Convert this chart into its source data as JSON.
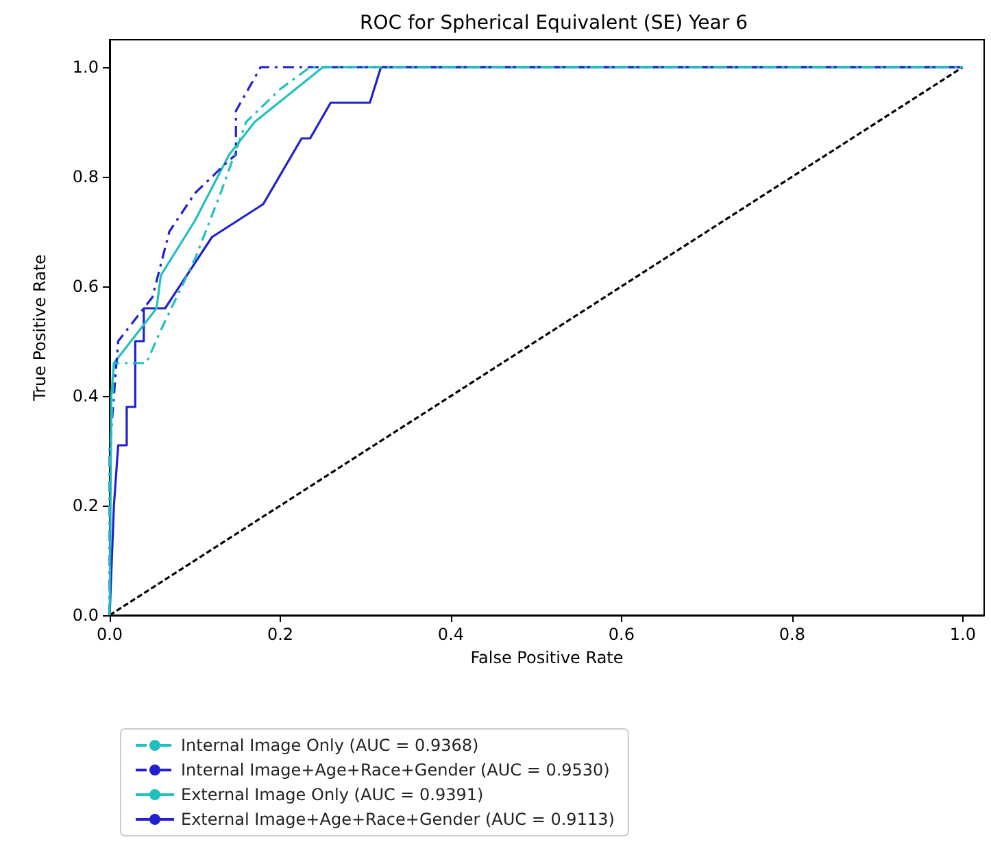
{
  "chart_data": {
    "type": "line",
    "title": "ROC for Spherical Equivalent (SE) Year 6",
    "xlabel": "False Positive Rate",
    "ylabel": "True Positive Rate",
    "xlim": [
      0,
      1.025
    ],
    "ylim": [
      0,
      1.05
    ],
    "xticks": [
      {
        "value": 0,
        "label": "0.0"
      },
      {
        "value": 0.2,
        "label": "0.2"
      },
      {
        "value": 0.4,
        "label": "0.4"
      },
      {
        "value": 0.6,
        "label": "0.6"
      },
      {
        "value": 0.8,
        "label": "0.8"
      },
      {
        "value": 1,
        "label": "1.0"
      }
    ],
    "yticks": [
      {
        "value": 0,
        "label": "0.0"
      },
      {
        "value": 0.2,
        "label": "0.2"
      },
      {
        "value": 0.4,
        "label": "0.4"
      },
      {
        "value": 0.6,
        "label": "0.6"
      },
      {
        "value": 0.8,
        "label": "0.8"
      },
      {
        "value": 1,
        "label": "1.0"
      }
    ],
    "grid": false,
    "legend": "bottom",
    "marker": "none",
    "series": [
      {
        "name": "Internal Image Only (AUC = 0.9368)",
        "color": "#20c0c0",
        "line_style": "dashdot",
        "x": [
          0,
          0,
          0.005,
          0.043,
          0.06,
          0.1,
          0.13,
          0.16,
          0.2,
          0.235,
          1
        ],
        "values": [
          0,
          0.27,
          0.46,
          0.46,
          0.52,
          0.65,
          0.77,
          0.9,
          0.96,
          1,
          1
        ]
      },
      {
        "name": "Internal Image+Age+Race+Gender (AUC = 0.9530)",
        "color": "#2020d0",
        "line_style": "dashdot",
        "x": [
          0,
          0,
          0.01,
          0.03,
          0.05,
          0.07,
          0.1,
          0.14,
          0.148,
          0.148,
          0.177,
          1
        ],
        "values": [
          0,
          0.3,
          0.5,
          0.54,
          0.58,
          0.7,
          0.77,
          0.83,
          0.84,
          0.92,
          1,
          1
        ]
      },
      {
        "name": "External Image Only (AUC = 0.9391)",
        "color": "#20c0c0",
        "line_style": "solid",
        "x": [
          0,
          0.002,
          0.005,
          0.055,
          0.06,
          0.1,
          0.14,
          0.17,
          0.25,
          1
        ],
        "values": [
          0,
          0.4,
          0.46,
          0.56,
          0.62,
          0.72,
          0.84,
          0.9,
          1,
          1
        ]
      },
      {
        "name": "External Image+Age+Race+Gender (AUC = 0.9113)",
        "color": "#2020d0",
        "line_style": "solid",
        "x": [
          0,
          0.005,
          0.01,
          0.02,
          0.02,
          0.03,
          0.03,
          0.04,
          0.04,
          0.065,
          0.12,
          0.18,
          0.225,
          0.235,
          0.259,
          0.305,
          0.318,
          1
        ],
        "values": [
          0,
          0.2,
          0.31,
          0.31,
          0.38,
          0.38,
          0.5,
          0.5,
          0.56,
          0.56,
          0.69,
          0.75,
          0.87,
          0.87,
          0.935,
          0.935,
          1,
          1
        ]
      },
      {
        "color": "#000000",
        "line_style": "dashed",
        "x": [
          0,
          1
        ],
        "values": [
          0,
          1
        ]
      }
    ]
  }
}
